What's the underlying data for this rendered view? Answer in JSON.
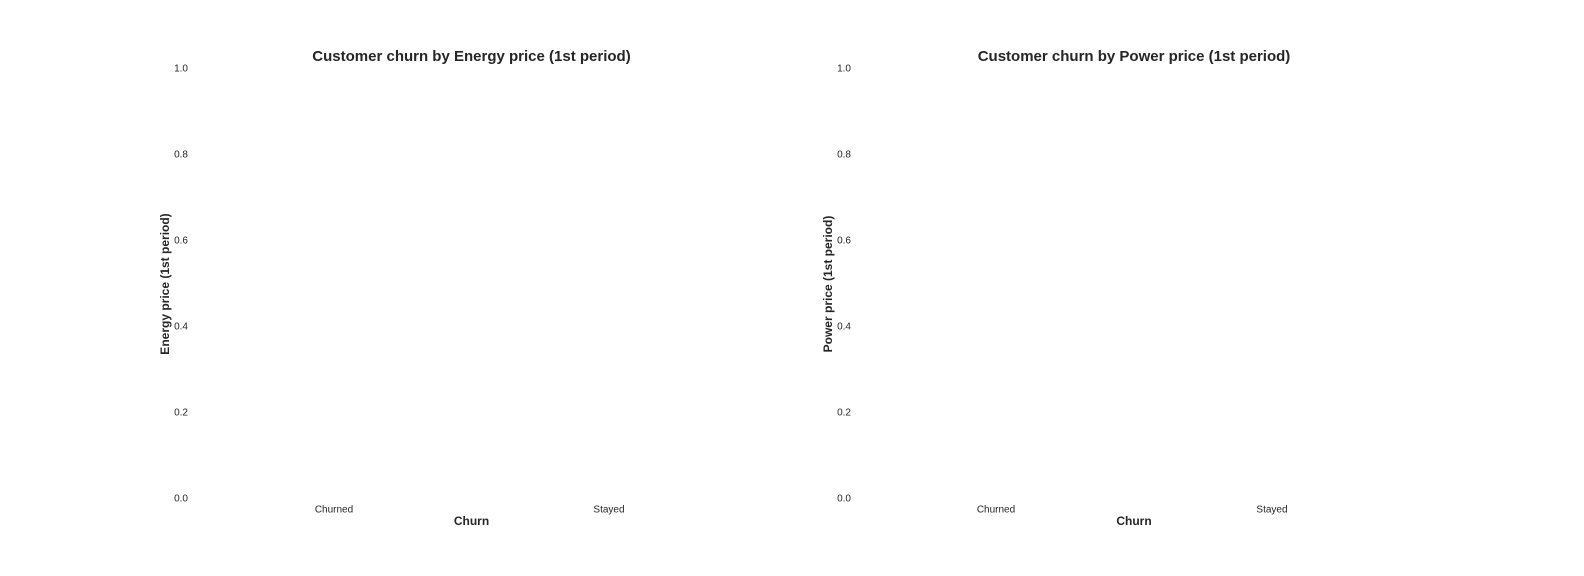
{
  "chart_data": [
    {
      "type": "bar",
      "title": "Customer churn by Energy price (1st period)",
      "xlabel": "Churn",
      "ylabel": "Energy price (1st period)",
      "categories": [
        "Churned",
        "Stayed"
      ],
      "ylim": [
        0,
        1
      ],
      "yticks": [
        {
          "value": 0,
          "label": "0.0"
        },
        0.2,
        0.4,
        0.6,
        0.8,
        {
          "value": 1,
          "label": "1.0"
        }
      ],
      "grid": false
    },
    {
      "type": "bar",
      "title": "Customer churn by Power price (1st period)",
      "xlabel": "Churn",
      "ylabel": "Power price (1st period)",
      "categories": [
        "Churned",
        "Stayed"
      ],
      "ylim": [
        0,
        1
      ],
      "yticks": [
        {
          "value": 0,
          "label": "0.0"
        },
        0.2,
        0.4,
        0.6,
        0.8,
        {
          "value": 1,
          "label": "1.0"
        }
      ],
      "grid": false
    }
  ]
}
